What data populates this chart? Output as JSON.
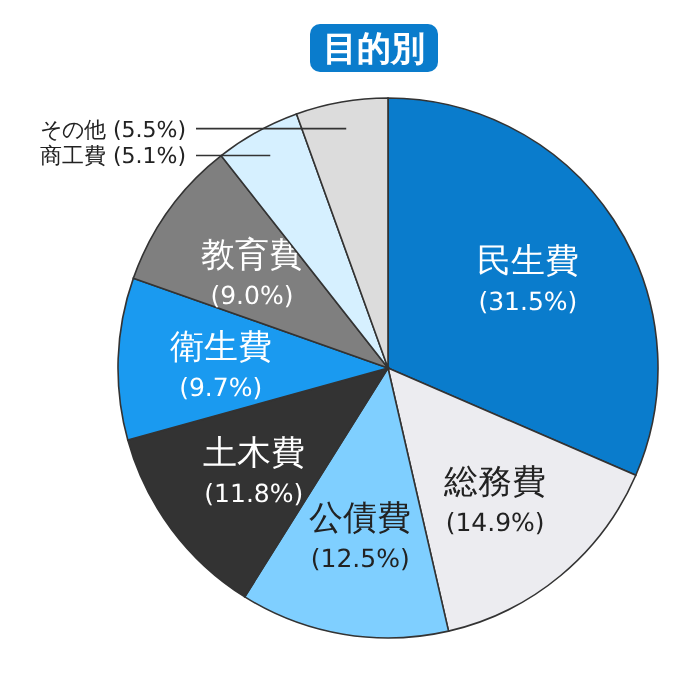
{
  "chart_data": {
    "type": "pie",
    "title": "目的別",
    "categories": [
      "民生費",
      "総務費",
      "公債費",
      "土木費",
      "衛生費",
      "教育費",
      "商工費",
      "その他"
    ],
    "values": [
      31.5,
      14.9,
      12.5,
      11.8,
      9.7,
      9.0,
      5.1,
      5.5
    ],
    "value_labels": [
      "(31.5%)",
      "(14.9%)",
      "(12.5%)",
      "(11.8%)",
      "(9.7%)",
      "(9.0%)",
      "(5.1%)",
      "(5.5%)"
    ],
    "colors": [
      "#0a7ccc",
      "#ececf0",
      "#7fcfff",
      "#333333",
      "#1a9af0",
      "#7f7f7f",
      "#d6f0ff",
      "#dcdcdc"
    ]
  }
}
